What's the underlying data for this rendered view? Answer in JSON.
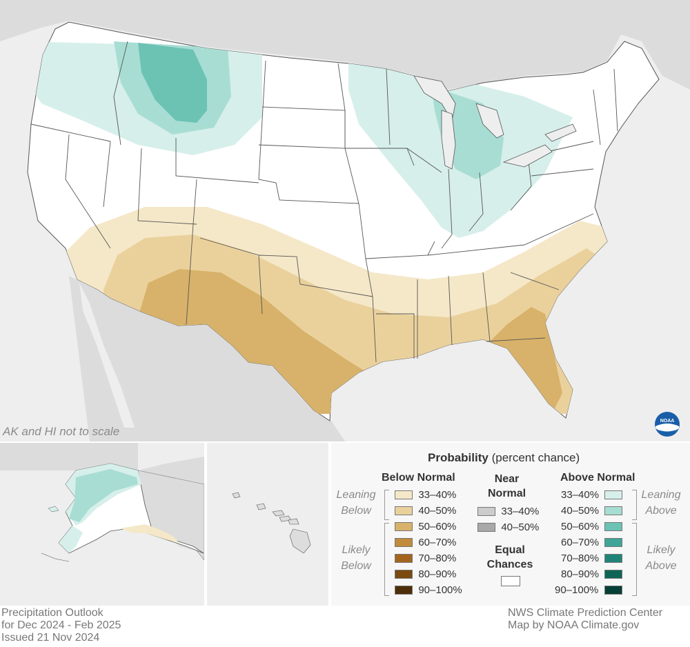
{
  "map": {
    "note": "AK and HI not to scale",
    "logo_icon": "noaa-logo"
  },
  "legend": {
    "title_bold": "Probability",
    "title_rest": " (percent chance)",
    "below_header": "Below Normal",
    "near_header_1": "Near",
    "near_header_2": "Normal",
    "above_header": "Above Normal",
    "leaning_below": [
      "Leaning",
      "Below"
    ],
    "likely_below": [
      "Likely",
      "Below"
    ],
    "leaning_above": [
      "Leaning",
      "Above"
    ],
    "likely_above": [
      "Likely",
      "Above"
    ],
    "equal_chances": [
      "Equal",
      "Chances"
    ],
    "below_rows": [
      {
        "label": "33–40%",
        "color": "#f5e8c8"
      },
      {
        "label": "40–50%",
        "color": "#ead19c"
      },
      {
        "label": "50–60%",
        "color": "#d8b26a"
      },
      {
        "label": "60–70%",
        "color": "#c18a3c"
      },
      {
        "label": "70–80%",
        "color": "#a3651e"
      },
      {
        "label": "80–90%",
        "color": "#7a4a10"
      },
      {
        "label": "90–100%",
        "color": "#4d2e08"
      }
    ],
    "near_rows": [
      {
        "label": "33–40%",
        "color": "#cccccc"
      },
      {
        "label": "40–50%",
        "color": "#a8a8a8"
      }
    ],
    "above_rows": [
      {
        "label": "33–40%",
        "color": "#d6efea"
      },
      {
        "label": "40–50%",
        "color": "#a8ddd3"
      },
      {
        "label": "50–60%",
        "color": "#6cc3b4"
      },
      {
        "label": "60–70%",
        "color": "#3ea597"
      },
      {
        "label": "70–80%",
        "color": "#1f8477"
      },
      {
        "label": "80–90%",
        "color": "#0f6457"
      },
      {
        "label": "90–100%",
        "color": "#063f36"
      }
    ],
    "equal_color": "#ffffff"
  },
  "footer": {
    "left": [
      "Precipitation Outlook",
      "for Dec 2024 - Feb 2025",
      "Issued 21 Nov 2024"
    ],
    "right": [
      "NWS Climate Prediction Center",
      "Map by NOAA Climate.gov"
    ]
  },
  "colors": {
    "background_land": "#dcdcdc",
    "water": "#eeeeee",
    "conus_base": "#ffffff",
    "border": "#555555"
  }
}
